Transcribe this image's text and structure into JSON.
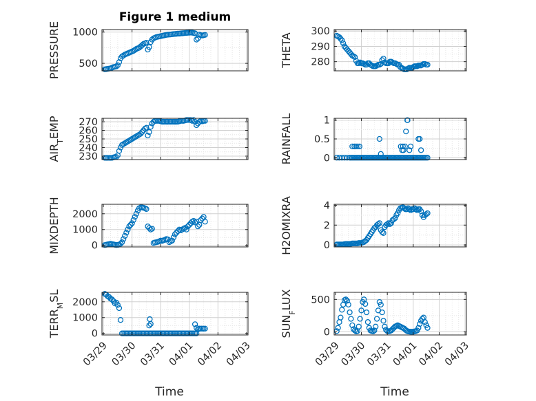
{
  "figure": {
    "title": "Figure 1 medium"
  },
  "colors": {
    "marker": "#0072BD",
    "axis": "#262626",
    "grid": "#d0d0d0",
    "minor_grid": "#e6e6e6"
  },
  "chart_data": [
    {
      "name": "pressure",
      "type": "scatter",
      "ylabel": "PRESSURE",
      "title": "Figure 1 medium",
      "ylim": [
        380,
        1040
      ],
      "yticks": [
        500,
        1000
      ],
      "ytick_labels": [
        "500",
        "1000"
      ],
      "grid": true,
      "x": [
        0.05,
        0.1,
        0.15,
        0.2,
        0.25,
        0.3,
        0.35,
        0.4,
        0.45,
        0.5,
        0.55,
        0.6,
        0.65,
        0.7,
        0.75,
        0.8,
        0.85,
        0.9,
        0.95,
        1.0,
        1.05,
        1.1,
        1.15,
        1.2,
        1.25,
        1.3,
        1.35,
        1.4,
        1.45,
        1.5,
        1.55,
        1.6,
        1.65,
        1.7,
        1.75,
        1.8,
        1.85,
        1.9,
        1.95,
        2.0,
        2.05,
        2.1,
        2.15,
        2.2,
        2.25,
        2.3,
        2.35,
        2.4,
        2.45,
        2.5,
        2.55,
        2.6,
        2.65,
        2.7,
        2.75,
        2.8,
        2.85,
        2.9,
        2.95,
        3.0,
        3.05,
        3.1,
        3.15,
        3.2,
        3.25,
        3.3,
        3.35,
        3.4,
        3.45,
        3.5,
        3.55
      ],
      "y": [
        405,
        408,
        412,
        416,
        420,
        430,
        440,
        445,
        450,
        470,
        520,
        580,
        610,
        625,
        640,
        650,
        660,
        670,
        680,
        690,
        700,
        715,
        730,
        740,
        750,
        770,
        790,
        810,
        820,
        830,
        720,
        760,
        840,
        880,
        900,
        910,
        920,
        925,
        930,
        935,
        940,
        945,
        950,
        955,
        958,
        960,
        962,
        965,
        968,
        970,
        972,
        975,
        975,
        978,
        980,
        982,
        985,
        987,
        988,
        990,
        992,
        990,
        985,
        980,
        880,
        900,
        960,
        950,
        945,
        950,
        955
      ]
    },
    {
      "name": "theta",
      "type": "scatter",
      "ylabel": "THETA",
      "ylim": [
        274,
        301
      ],
      "yticks": [
        280,
        290,
        300
      ],
      "ytick_labels": [
        "280",
        "290",
        "300"
      ],
      "grid": true,
      "x": [
        0.05,
        0.1,
        0.15,
        0.2,
        0.25,
        0.3,
        0.35,
        0.4,
        0.45,
        0.5,
        0.55,
        0.6,
        0.65,
        0.7,
        0.75,
        0.8,
        0.85,
        0.9,
        0.95,
        1.0,
        1.05,
        1.1,
        1.15,
        1.2,
        1.25,
        1.3,
        1.35,
        1.4,
        1.45,
        1.5,
        1.55,
        1.6,
        1.65,
        1.7,
        1.75,
        1.8,
        1.85,
        1.9,
        1.95,
        2.0,
        2.05,
        2.1,
        2.15,
        2.2,
        2.25,
        2.3,
        2.35,
        2.4,
        2.45,
        2.5,
        2.55,
        2.6,
        2.65,
        2.7,
        2.75,
        2.8,
        2.85,
        2.9,
        2.95,
        3.0,
        3.05,
        3.1,
        3.15,
        3.2,
        3.25,
        3.3,
        3.35,
        3.4,
        3.45,
        3.5,
        3.55
      ],
      "y": [
        297,
        296.5,
        296,
        295,
        294,
        292,
        290,
        289,
        288,
        287,
        286,
        285,
        284,
        283.5,
        283,
        280.5,
        279,
        279,
        279.5,
        279,
        279,
        278.5,
        278,
        278,
        279,
        279,
        278,
        277.5,
        277,
        277,
        277,
        277.5,
        278,
        278,
        278.5,
        281,
        282,
        279.5,
        279,
        279,
        279,
        280,
        280,
        279.5,
        279,
        279,
        278.5,
        278,
        278,
        276.5,
        276,
        275.5,
        275,
        275,
        275,
        275.5,
        276,
        276,
        276,
        276.5,
        277,
        277,
        277,
        277.5,
        277.5,
        277.5,
        278,
        278.5,
        278.5,
        278,
        278
      ]
    },
    {
      "name": "air-temp",
      "type": "scatter",
      "ylabel": "AIR",
      "ylabel_sub": "T",
      "ylabel_suffix": "EMP",
      "ylim": [
        226,
        274
      ],
      "yticks": [
        230,
        240,
        250,
        260,
        270
      ],
      "ytick_labels": [
        "230",
        "240",
        "250",
        "260",
        "270"
      ],
      "grid": true,
      "x": [
        0.05,
        0.1,
        0.15,
        0.2,
        0.25,
        0.3,
        0.35,
        0.4,
        0.45,
        0.5,
        0.55,
        0.6,
        0.65,
        0.7,
        0.75,
        0.8,
        0.85,
        0.9,
        0.95,
        1.0,
        1.05,
        1.1,
        1.15,
        1.2,
        1.25,
        1.3,
        1.35,
        1.4,
        1.45,
        1.5,
        1.55,
        1.6,
        1.65,
        1.7,
        1.75,
        1.8,
        1.85,
        1.9,
        1.95,
        2.0,
        2.05,
        2.1,
        2.15,
        2.2,
        2.25,
        2.3,
        2.35,
        2.4,
        2.45,
        2.5,
        2.55,
        2.6,
        2.65,
        2.7,
        2.75,
        2.8,
        2.85,
        2.9,
        2.95,
        3.0,
        3.05,
        3.1,
        3.15,
        3.2,
        3.25,
        3.3,
        3.35,
        3.4,
        3.45,
        3.5,
        3.55
      ],
      "y": [
        228,
        228,
        228,
        228,
        228,
        228,
        228.5,
        229,
        229,
        231,
        236,
        240,
        243,
        244,
        245,
        246,
        247,
        248,
        249,
        250,
        251,
        252,
        253,
        254,
        255,
        256,
        258,
        260,
        262,
        263,
        254,
        258,
        264,
        268,
        270,
        271,
        271,
        271,
        271,
        270.5,
        270,
        270,
        270,
        270,
        270,
        270,
        270,
        270,
        270,
        270,
        270,
        270,
        270.5,
        271,
        271,
        271,
        271.5,
        272,
        272,
        272,
        272,
        271,
        272,
        270,
        266,
        268,
        270,
        271,
        270.5,
        271,
        271
      ]
    },
    {
      "name": "rainfall",
      "type": "scatter",
      "ylabel": "RAINFALL",
      "ylim": [
        -0.05,
        1.05
      ],
      "yticks": [
        0,
        0.5,
        1
      ],
      "ytick_labels": [
        "0",
        "0.5",
        "1"
      ],
      "grid": true,
      "x": [
        0.05,
        0.15,
        0.25,
        0.35,
        0.45,
        0.55,
        0.6,
        0.65,
        0.7,
        0.75,
        0.8,
        0.85,
        0.9,
        0.95,
        1.0,
        1.05,
        1.1,
        1.15,
        1.2,
        1.25,
        1.3,
        1.35,
        1.4,
        1.45,
        1.5,
        1.55,
        1.6,
        1.65,
        1.7,
        1.75,
        1.8,
        1.85,
        1.9,
        1.95,
        2.0,
        2.05,
        2.1,
        2.15,
        2.2,
        2.25,
        2.3,
        2.35,
        2.4,
        2.45,
        2.5,
        2.55,
        2.6,
        2.65,
        2.7,
        2.75,
        2.8,
        2.85,
        2.9,
        2.95,
        3.0,
        3.05,
        3.1,
        3.15,
        3.2,
        3.25,
        3.3,
        3.35,
        3.4,
        3.45,
        3.5,
        3.55,
        0.65,
        0.73,
        0.8,
        0.86,
        0.93,
        1.7,
        1.75,
        2.52,
        2.57,
        2.6,
        2.62,
        2.68,
        2.72,
        2.78,
        2.77,
        2.85,
        2.9,
        3.2,
        3.25,
        3.3
      ],
      "y": [
        0,
        0,
        0,
        0,
        0,
        0,
        0,
        0,
        0,
        0,
        0,
        0,
        0,
        0,
        0,
        0,
        0,
        0,
        0,
        0,
        0,
        0,
        0,
        0,
        0,
        0,
        0,
        0,
        0,
        0,
        0,
        0,
        0,
        0,
        0,
        0,
        0,
        0,
        0,
        0,
        0,
        0,
        0,
        0,
        0,
        0,
        0,
        0,
        0,
        0,
        0,
        0,
        0,
        0,
        0,
        0,
        0,
        0,
        0,
        0,
        0,
        0,
        0,
        0,
        0,
        0,
        0.3,
        0.3,
        0.3,
        0.3,
        0.3,
        0.5,
        0.1,
        0.3,
        0.2,
        0.3,
        0.2,
        0.3,
        0.7,
        1,
        1,
        0.2,
        0.3,
        0.5,
        0.5,
        0.2
      ]
    },
    {
      "name": "mixdepth",
      "type": "scatter",
      "ylabel": "MIXDEPTH",
      "ylim": [
        -100,
        2600
      ],
      "yticks": [
        0,
        1000,
        2000
      ],
      "ytick_labels": [
        "0",
        "1000",
        "2000"
      ],
      "grid": true,
      "x": [
        0.05,
        0.1,
        0.15,
        0.2,
        0.25,
        0.3,
        0.35,
        0.4,
        0.45,
        0.5,
        0.55,
        0.6,
        0.65,
        0.7,
        0.75,
        0.8,
        0.85,
        0.9,
        0.95,
        1.0,
        1.05,
        1.1,
        1.15,
        1.2,
        1.25,
        1.3,
        1.35,
        1.4,
        1.45,
        1.5,
        1.55,
        1.6,
        1.65,
        1.7,
        1.75,
        1.8,
        1.85,
        1.9,
        1.95,
        2.0,
        2.05,
        2.1,
        2.15,
        2.2,
        2.25,
        2.3,
        2.35,
        2.4,
        2.45,
        2.5,
        2.55,
        2.6,
        2.65,
        2.7,
        2.75,
        2.8,
        2.85,
        2.9,
        2.95,
        3.0,
        3.05,
        3.1,
        3.15,
        3.2,
        3.25,
        3.3,
        3.35,
        3.4,
        3.45,
        3.5,
        3.55
      ],
      "y": [
        20,
        40,
        60,
        80,
        100,
        80,
        60,
        40,
        20,
        30,
        50,
        100,
        200,
        400,
        600,
        800,
        1000,
        1200,
        1300,
        1400,
        1600,
        1800,
        2000,
        2200,
        2350,
        2400,
        2400,
        2380,
        2350,
        2300,
        1200,
        1100,
        1000,
        1050,
        150,
        180,
        200,
        220,
        250,
        300,
        280,
        320,
        350,
        400,
        380,
        200,
        250,
        300,
        500,
        700,
        800,
        900,
        1000,
        950,
        1000,
        1050,
        1100,
        1000,
        1200,
        1300,
        1400,
        1500,
        1550,
        1450,
        1500,
        1200,
        1300,
        1600,
        1700,
        1800,
        1500
      ]
    },
    {
      "name": "h2omixra",
      "type": "scatter",
      "ylabel": "H2OMIXRA",
      "ylim": [
        -0.2,
        4.1
      ],
      "yticks": [
        0,
        2,
        4
      ],
      "ytick_labels": [
        "0",
        "2",
        "4"
      ],
      "grid": true,
      "x": [
        0.05,
        0.1,
        0.15,
        0.2,
        0.25,
        0.3,
        0.35,
        0.4,
        0.45,
        0.5,
        0.55,
        0.6,
        0.65,
        0.7,
        0.75,
        0.8,
        0.85,
        0.9,
        0.95,
        1.0,
        1.05,
        1.1,
        1.15,
        1.2,
        1.25,
        1.3,
        1.35,
        1.4,
        1.45,
        1.5,
        1.55,
        1.6,
        1.65,
        1.7,
        1.75,
        1.8,
        1.85,
        1.9,
        1.95,
        2.0,
        2.05,
        2.1,
        2.15,
        2.2,
        2.25,
        2.3,
        2.35,
        2.4,
        2.45,
        2.5,
        2.55,
        2.6,
        2.65,
        2.7,
        2.75,
        2.8,
        2.85,
        2.9,
        2.95,
        3.0,
        3.05,
        3.1,
        3.15,
        3.2,
        3.25,
        3.3,
        3.35,
        3.4,
        3.45,
        3.5,
        3.55
      ],
      "y": [
        0.05,
        0.05,
        0.05,
        0.05,
        0.05,
        0.05,
        0.08,
        0.1,
        0.1,
        0.1,
        0.1,
        0.12,
        0.15,
        0.15,
        0.15,
        0.15,
        0.15,
        0.2,
        0.2,
        0.2,
        0.25,
        0.3,
        0.4,
        0.5,
        0.7,
        0.9,
        1.1,
        1.3,
        1.5,
        1.7,
        1.8,
        2.0,
        2.1,
        2.2,
        1.5,
        1.3,
        1.2,
        1.8,
        2.0,
        2.1,
        2.2,
        2.1,
        2.2,
        2.5,
        2.6,
        2.7,
        3.0,
        3.2,
        3.5,
        3.7,
        3.75,
        3.8,
        3.7,
        3.6,
        3.6,
        3.7,
        3.6,
        3.5,
        3.6,
        3.6,
        3.7,
        3.6,
        3.5,
        3.6,
        3.6,
        3.4,
        3.0,
        2.8,
        3.0,
        3.1,
        3.2
      ]
    },
    {
      "name": "terr-msl",
      "type": "scatter",
      "ylabel": "TERR",
      "ylabel_sub": "M",
      "ylabel_suffix": "SL",
      "ylim": [
        -100,
        2600
      ],
      "yticks": [
        0,
        1000,
        2000
      ],
      "ytick_labels": [
        "0",
        "1000",
        "2000"
      ],
      "grid": true,
      "xticks": [
        0,
        1,
        2,
        3,
        4,
        5
      ],
      "xtick_labels": [
        "03/29",
        "03/30",
        "03/31",
        "04/01",
        "04/02",
        "04/03"
      ],
      "xlabel": "Time",
      "x": [
        0.05,
        0.1,
        0.15,
        0.2,
        0.25,
        0.3,
        0.35,
        0.4,
        0.45,
        0.5,
        0.55,
        0.6,
        0.65,
        0.7,
        0.75,
        0.8,
        0.85,
        0.9,
        0.95,
        1.0,
        1.05,
        1.1,
        1.15,
        1.2,
        1.25,
        1.3,
        1.35,
        1.4,
        1.45,
        1.5,
        1.55,
        1.6,
        1.65,
        1.7,
        1.75,
        1.8,
        1.85,
        1.9,
        1.95,
        2.0,
        2.05,
        2.1,
        2.15,
        2.2,
        2.25,
        2.3,
        2.35,
        2.4,
        2.45,
        2.5,
        2.55,
        2.6,
        2.65,
        2.7,
        2.75,
        2.8,
        2.85,
        2.9,
        2.95,
        3.0,
        3.05,
        3.1,
        3.15,
        3.2,
        3.25,
        3.3,
        3.35,
        3.4,
        3.45,
        3.5,
        3.55,
        1.6,
        1.62,
        1.65,
        3.2,
        3.25
      ],
      "y": [
        2500,
        2450,
        2350,
        2300,
        2200,
        2150,
        2050,
        1900,
        1950,
        1800,
        1600,
        850,
        0,
        0,
        0,
        0,
        0,
        0,
        0,
        0,
        0,
        0,
        0,
        0,
        0,
        0,
        0,
        0,
        0,
        0,
        0,
        0,
        0,
        0,
        0,
        0,
        0,
        0,
        0,
        0,
        0,
        0,
        0,
        0,
        0,
        0,
        0,
        0,
        0,
        0,
        0,
        0,
        0,
        0,
        0,
        0,
        0,
        0,
        0,
        0,
        0,
        0,
        0,
        0,
        0,
        250,
        300,
        300,
        300,
        300,
        300,
        500,
        900,
        600,
        580,
        350
      ]
    },
    {
      "name": "sun-flux",
      "type": "scatter",
      "ylabel": "SUN",
      "ylabel_sub": "F",
      "ylabel_suffix": "LUX",
      "ylim": [
        -50,
        610
      ],
      "yticks": [
        0,
        500
      ],
      "ytick_labels": [
        "0",
        "500"
      ],
      "grid": true,
      "xticks": [
        0,
        1,
        2,
        3,
        4,
        5
      ],
      "xtick_labels": [
        "03/29",
        "03/30",
        "03/31",
        "04/01",
        "04/02",
        "04/03"
      ],
      "xlabel": "Time",
      "x": [
        0.05,
        0.1,
        0.15,
        0.2,
        0.25,
        0.3,
        0.35,
        0.4,
        0.45,
        0.5,
        0.55,
        0.6,
        0.65,
        0.7,
        0.75,
        0.8,
        0.85,
        0.9,
        0.95,
        1.0,
        1.05,
        1.1,
        1.15,
        1.2,
        1.25,
        1.3,
        1.35,
        1.4,
        1.45,
        1.5,
        1.55,
        1.6,
        1.65,
        1.7,
        1.75,
        1.8,
        1.85,
        1.9,
        1.95,
        2.0,
        2.05,
        2.1,
        2.15,
        2.2,
        2.25,
        2.3,
        2.35,
        2.4,
        2.45,
        2.5,
        2.55,
        2.6,
        2.65,
        2.7,
        2.75,
        2.8,
        2.85,
        2.9,
        2.95,
        3.0,
        3.05,
        3.1,
        3.15,
        3.2,
        3.25,
        3.3,
        3.35,
        3.4,
        3.45,
        3.5,
        3.55
      ],
      "y": [
        10,
        60,
        150,
        220,
        340,
        420,
        490,
        500,
        480,
        420,
        300,
        200,
        100,
        40,
        20,
        5,
        10,
        80,
        200,
        330,
        460,
        500,
        430,
        300,
        150,
        60,
        20,
        10,
        5,
        20,
        80,
        200,
        330,
        460,
        420,
        300,
        170,
        80,
        30,
        10,
        5,
        10,
        20,
        40,
        60,
        80,
        90,
        100,
        90,
        80,
        70,
        60,
        50,
        30,
        15,
        5,
        2,
        0,
        0,
        0,
        5,
        10,
        20,
        60,
        120,
        170,
        200,
        220,
        150,
        100,
        60
      ]
    }
  ]
}
